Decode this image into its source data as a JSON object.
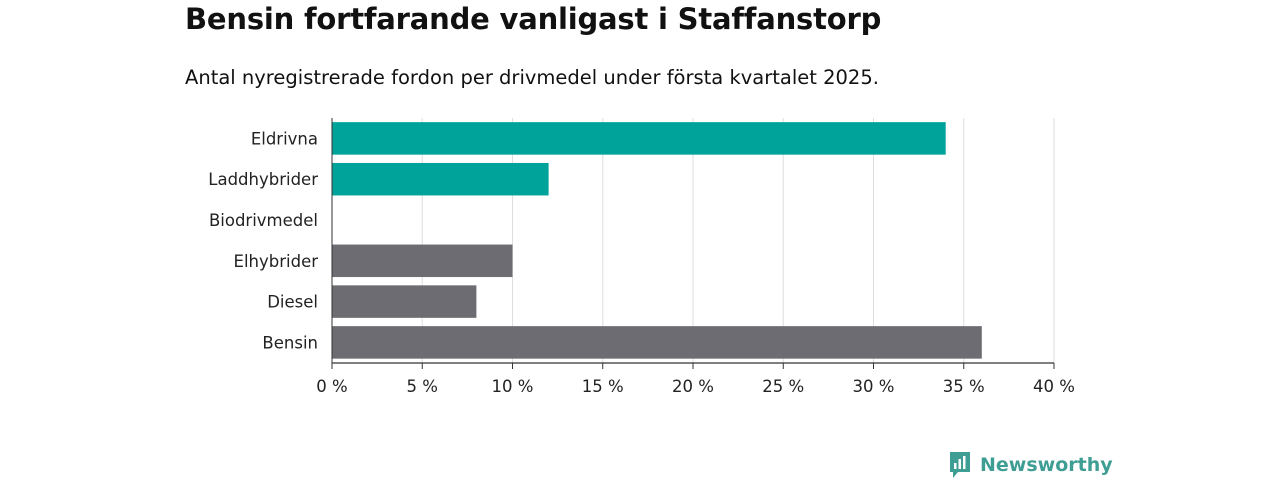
{
  "header": {
    "title": "Bensin fortfarande vanligast i Staffanstorp",
    "subtitle": "Antal nyregistrerade fordon per drivmedel under första kvartalet 2025."
  },
  "brand": {
    "name": "Newsworthy",
    "icon": "newsworthy-logo-icon",
    "color": "#3f9e94"
  },
  "chart_data": {
    "type": "bar",
    "orientation": "horizontal",
    "title": "Bensin fortfarande vanligast i Staffanstorp",
    "subtitle": "Antal nyregistrerade fordon per drivmedel under första kvartalet 2025.",
    "categories": [
      "Eldrivna",
      "Laddhybrider",
      "Biodrivmedel",
      "Elhybrider",
      "Diesel",
      "Bensin"
    ],
    "values": [
      34,
      12,
      0,
      10,
      8,
      36
    ],
    "colors": [
      "#00a39a",
      "#00a39a",
      "#00a39a",
      "#6d6c72",
      "#6d6c72",
      "#6d6c72"
    ],
    "unit": "%",
    "xlim": [
      0,
      40
    ],
    "xticks": [
      0,
      5,
      10,
      15,
      20,
      25,
      30,
      35,
      40
    ],
    "xtick_labels": [
      "0 %",
      "5 %",
      "10 %",
      "15 %",
      "20 %",
      "25 %",
      "30 %",
      "35 %",
      "40 %"
    ],
    "grid": true,
    "legend": "none"
  }
}
